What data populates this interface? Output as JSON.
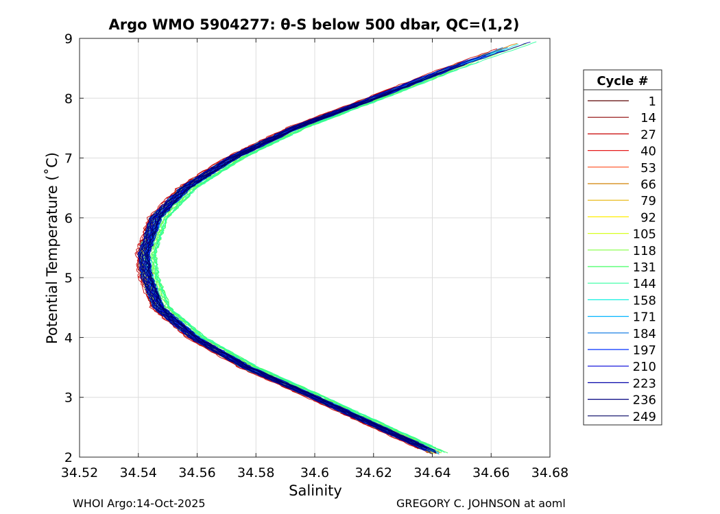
{
  "chart_data": {
    "type": "line",
    "title": "Argo WMO 5904277: θ-S below 500 dbar,  QC=(1,2)",
    "xlabel": "Salinity",
    "ylabel": "Potential Temperature (˚C)",
    "xlim": [
      34.52,
      34.68
    ],
    "ylim": [
      2,
      9
    ],
    "xticks": [
      "34.52",
      "34.54",
      "34.56",
      "34.58",
      "34.6",
      "34.62",
      "34.64",
      "34.66",
      "34.68"
    ],
    "yticks": [
      "2",
      "3",
      "4",
      "5",
      "6",
      "7",
      "8",
      "9"
    ],
    "grid": true,
    "legend": {
      "title": "Cycle #",
      "placement": "outside-right",
      "entries": [
        "1",
        "14",
        "27",
        "40",
        "53",
        "66",
        "79",
        "92",
        "105",
        "118",
        "131",
        "144",
        "158",
        "171",
        "184",
        "197",
        "210",
        "223",
        "236",
        "249"
      ],
      "colors": [
        "#5a0000",
        "#8c0000",
        "#c80000",
        "#e61a1a",
        "#ff4a1a",
        "#d08000",
        "#e6b400",
        "#ffee00",
        "#d8ff20",
        "#80ff40",
        "#40ff60",
        "#30ffa0",
        "#10f0e0",
        "#00b4ff",
        "#0070e0",
        "#0030ff",
        "#0000d8",
        "#0000a8",
        "#000080",
        "#000060"
      ]
    },
    "series_envelope": {
      "description_of_values": "approximate salinity of the θ-S curve at each temperature",
      "theta": [
        2.05,
        2.5,
        3.0,
        3.5,
        4.0,
        4.5,
        5.0,
        5.4,
        6.0,
        6.5,
        7.0,
        7.5,
        8.0,
        8.5,
        8.95
      ],
      "salinity": [
        34.642,
        34.622,
        34.6,
        34.577,
        34.559,
        34.547,
        34.543,
        34.542,
        34.546,
        34.556,
        34.572,
        34.593,
        34.62,
        34.646,
        34.672
      ]
    }
  },
  "footer": {
    "left": "WHOI Argo:14-Oct-2025",
    "right": "GREGORY C. JOHNSON at aoml"
  }
}
